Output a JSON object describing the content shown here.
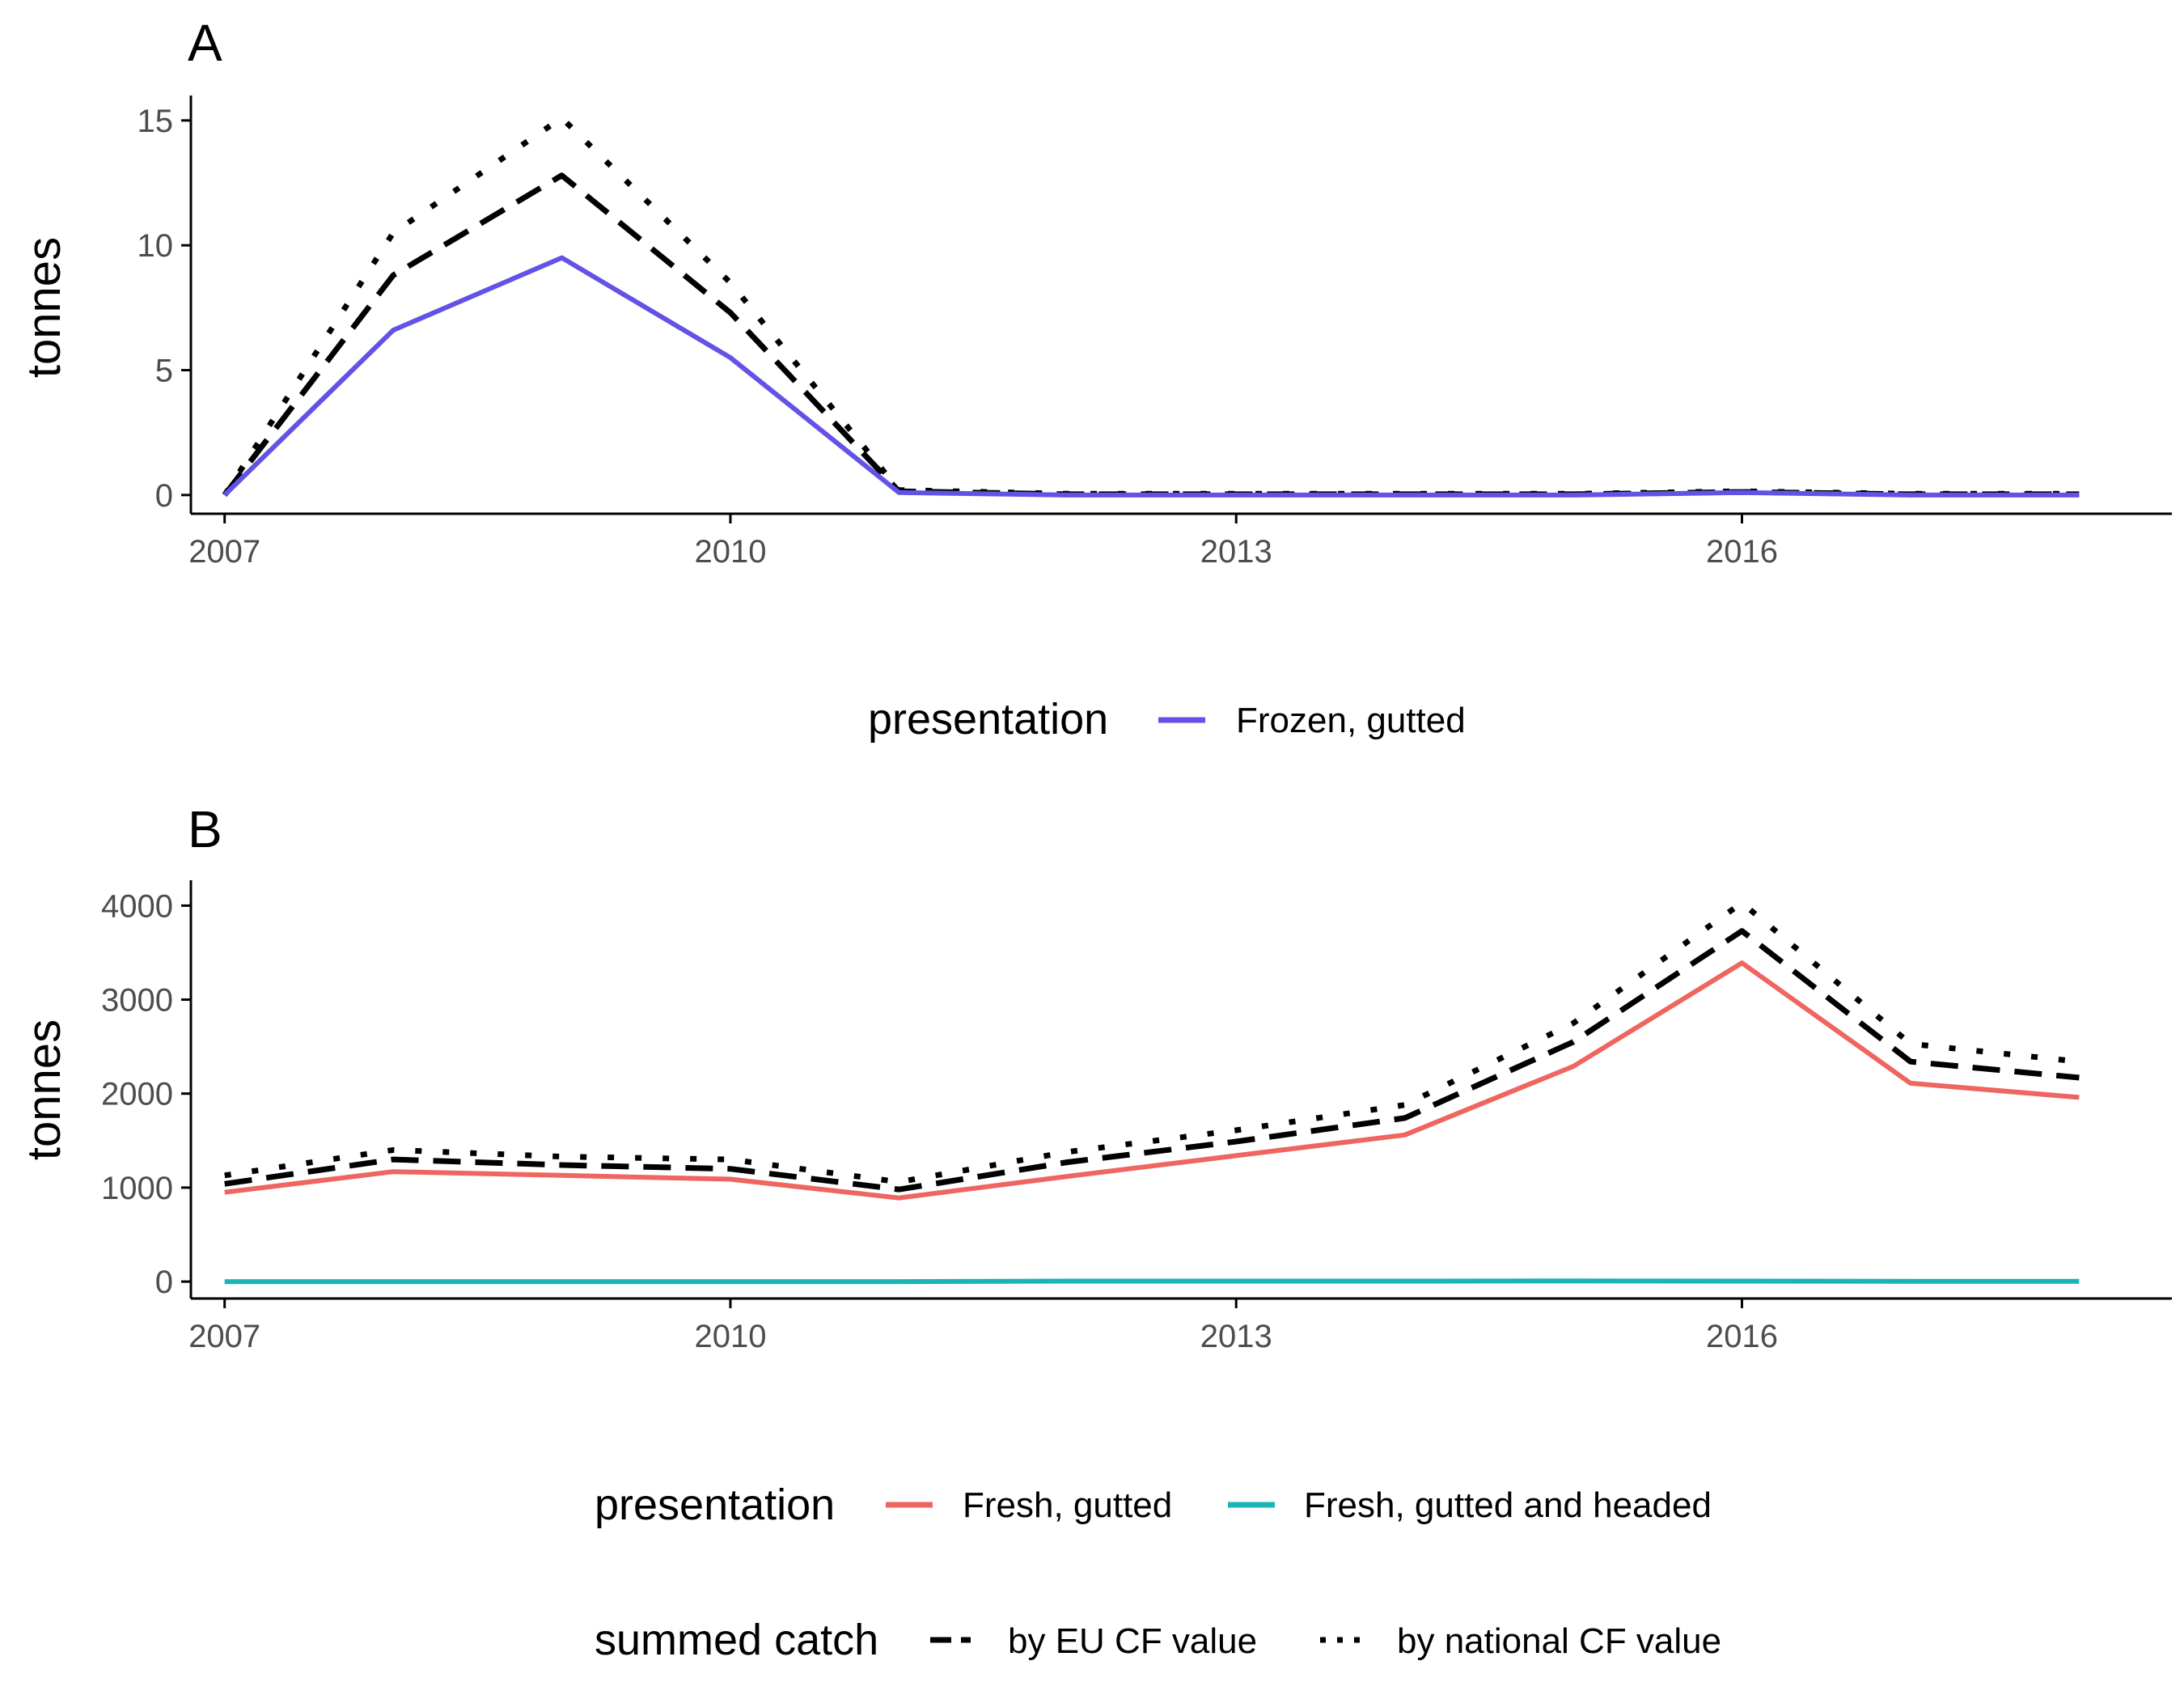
{
  "chart_data": [
    {
      "type": "line",
      "panel": "A",
      "ylabel": "tonnes",
      "xlim": [
        2006.8,
        2018.55
      ],
      "ylim": [
        -0.75,
        16
      ],
      "x_ticks": [
        2007,
        2010,
        2013,
        2016
      ],
      "y_ticks": [
        0,
        5,
        10,
        15
      ],
      "x": [
        2007,
        2008,
        2009,
        2010,
        2011,
        2012,
        2013,
        2014,
        2015,
        2016,
        2017,
        2018
      ],
      "series": [
        {
          "key": "national",
          "style": "dotted",
          "color": "#000000",
          "values": [
            0,
            10.5,
            15.1,
            8.5,
            0.2,
            0.05,
            0.05,
            0.05,
            0.05,
            0.15,
            0.05,
            0.05
          ]
        },
        {
          "key": "eu",
          "style": "dashed",
          "color": "#000000",
          "values": [
            0,
            8.8,
            12.8,
            7.3,
            0.15,
            0.03,
            0.03,
            0.03,
            0.03,
            0.12,
            0.03,
            0.03
          ]
        },
        {
          "key": "frozen_gutted",
          "style": "solid",
          "color": "#6352e6",
          "values": [
            0,
            6.6,
            9.5,
            5.5,
            0.1,
            0,
            0,
            0,
            0,
            0.1,
            0,
            0
          ]
        }
      ],
      "legend": {
        "placement": "bottom",
        "title": "presentation",
        "entries": [
          {
            "label": "Frozen, gutted",
            "color": "#6352e6"
          }
        ]
      }
    },
    {
      "type": "line",
      "panel": "B",
      "ylabel": "tonnes",
      "xlim": [
        2006.8,
        2018.55
      ],
      "ylim": [
        -180,
        4270
      ],
      "x_ticks": [
        2007,
        2010,
        2013,
        2016
      ],
      "y_ticks": [
        0,
        1000,
        2000,
        3000,
        4000
      ],
      "x": [
        2007,
        2008,
        2009,
        2010,
        2011,
        2012,
        2013,
        2014,
        2015,
        2016,
        2017,
        2018
      ],
      "series": [
        {
          "key": "national",
          "style": "dotted",
          "color": "#000000",
          "values": [
            1130,
            1400,
            1330,
            1300,
            1060,
            1380,
            1610,
            1880,
            2750,
            4030,
            2530,
            2340
          ]
        },
        {
          "key": "eu",
          "style": "dashed",
          "color": "#000000",
          "values": [
            1040,
            1300,
            1240,
            1200,
            980,
            1270,
            1490,
            1740,
            2550,
            3730,
            2340,
            2170
          ]
        },
        {
          "key": "fresh_gutted",
          "style": "solid",
          "color": "#ef6560",
          "values": [
            950,
            1170,
            1130,
            1090,
            890,
            1120,
            1340,
            1560,
            2290,
            3390,
            2110,
            1960
          ]
        },
        {
          "key": "fresh_gutted_headed",
          "style": "solid",
          "color": "#1bb3b6",
          "values": [
            0,
            0,
            0,
            0,
            0,
            5,
            5,
            5,
            8,
            5,
            3,
            3
          ]
        }
      ],
      "legend": {
        "placement": "bottom",
        "title": "presentation",
        "entries": [
          {
            "label": "Fresh, gutted",
            "color": "#ef6560"
          },
          {
            "label": "Fresh, gutted and headed",
            "color": "#1bb3b6"
          }
        ]
      }
    }
  ],
  "shared_legend": {
    "title": "summed catch",
    "entries": [
      {
        "label": "by EU CF value",
        "style": "dashed"
      },
      {
        "label": "by national CF value",
        "style": "dotted"
      }
    ]
  }
}
